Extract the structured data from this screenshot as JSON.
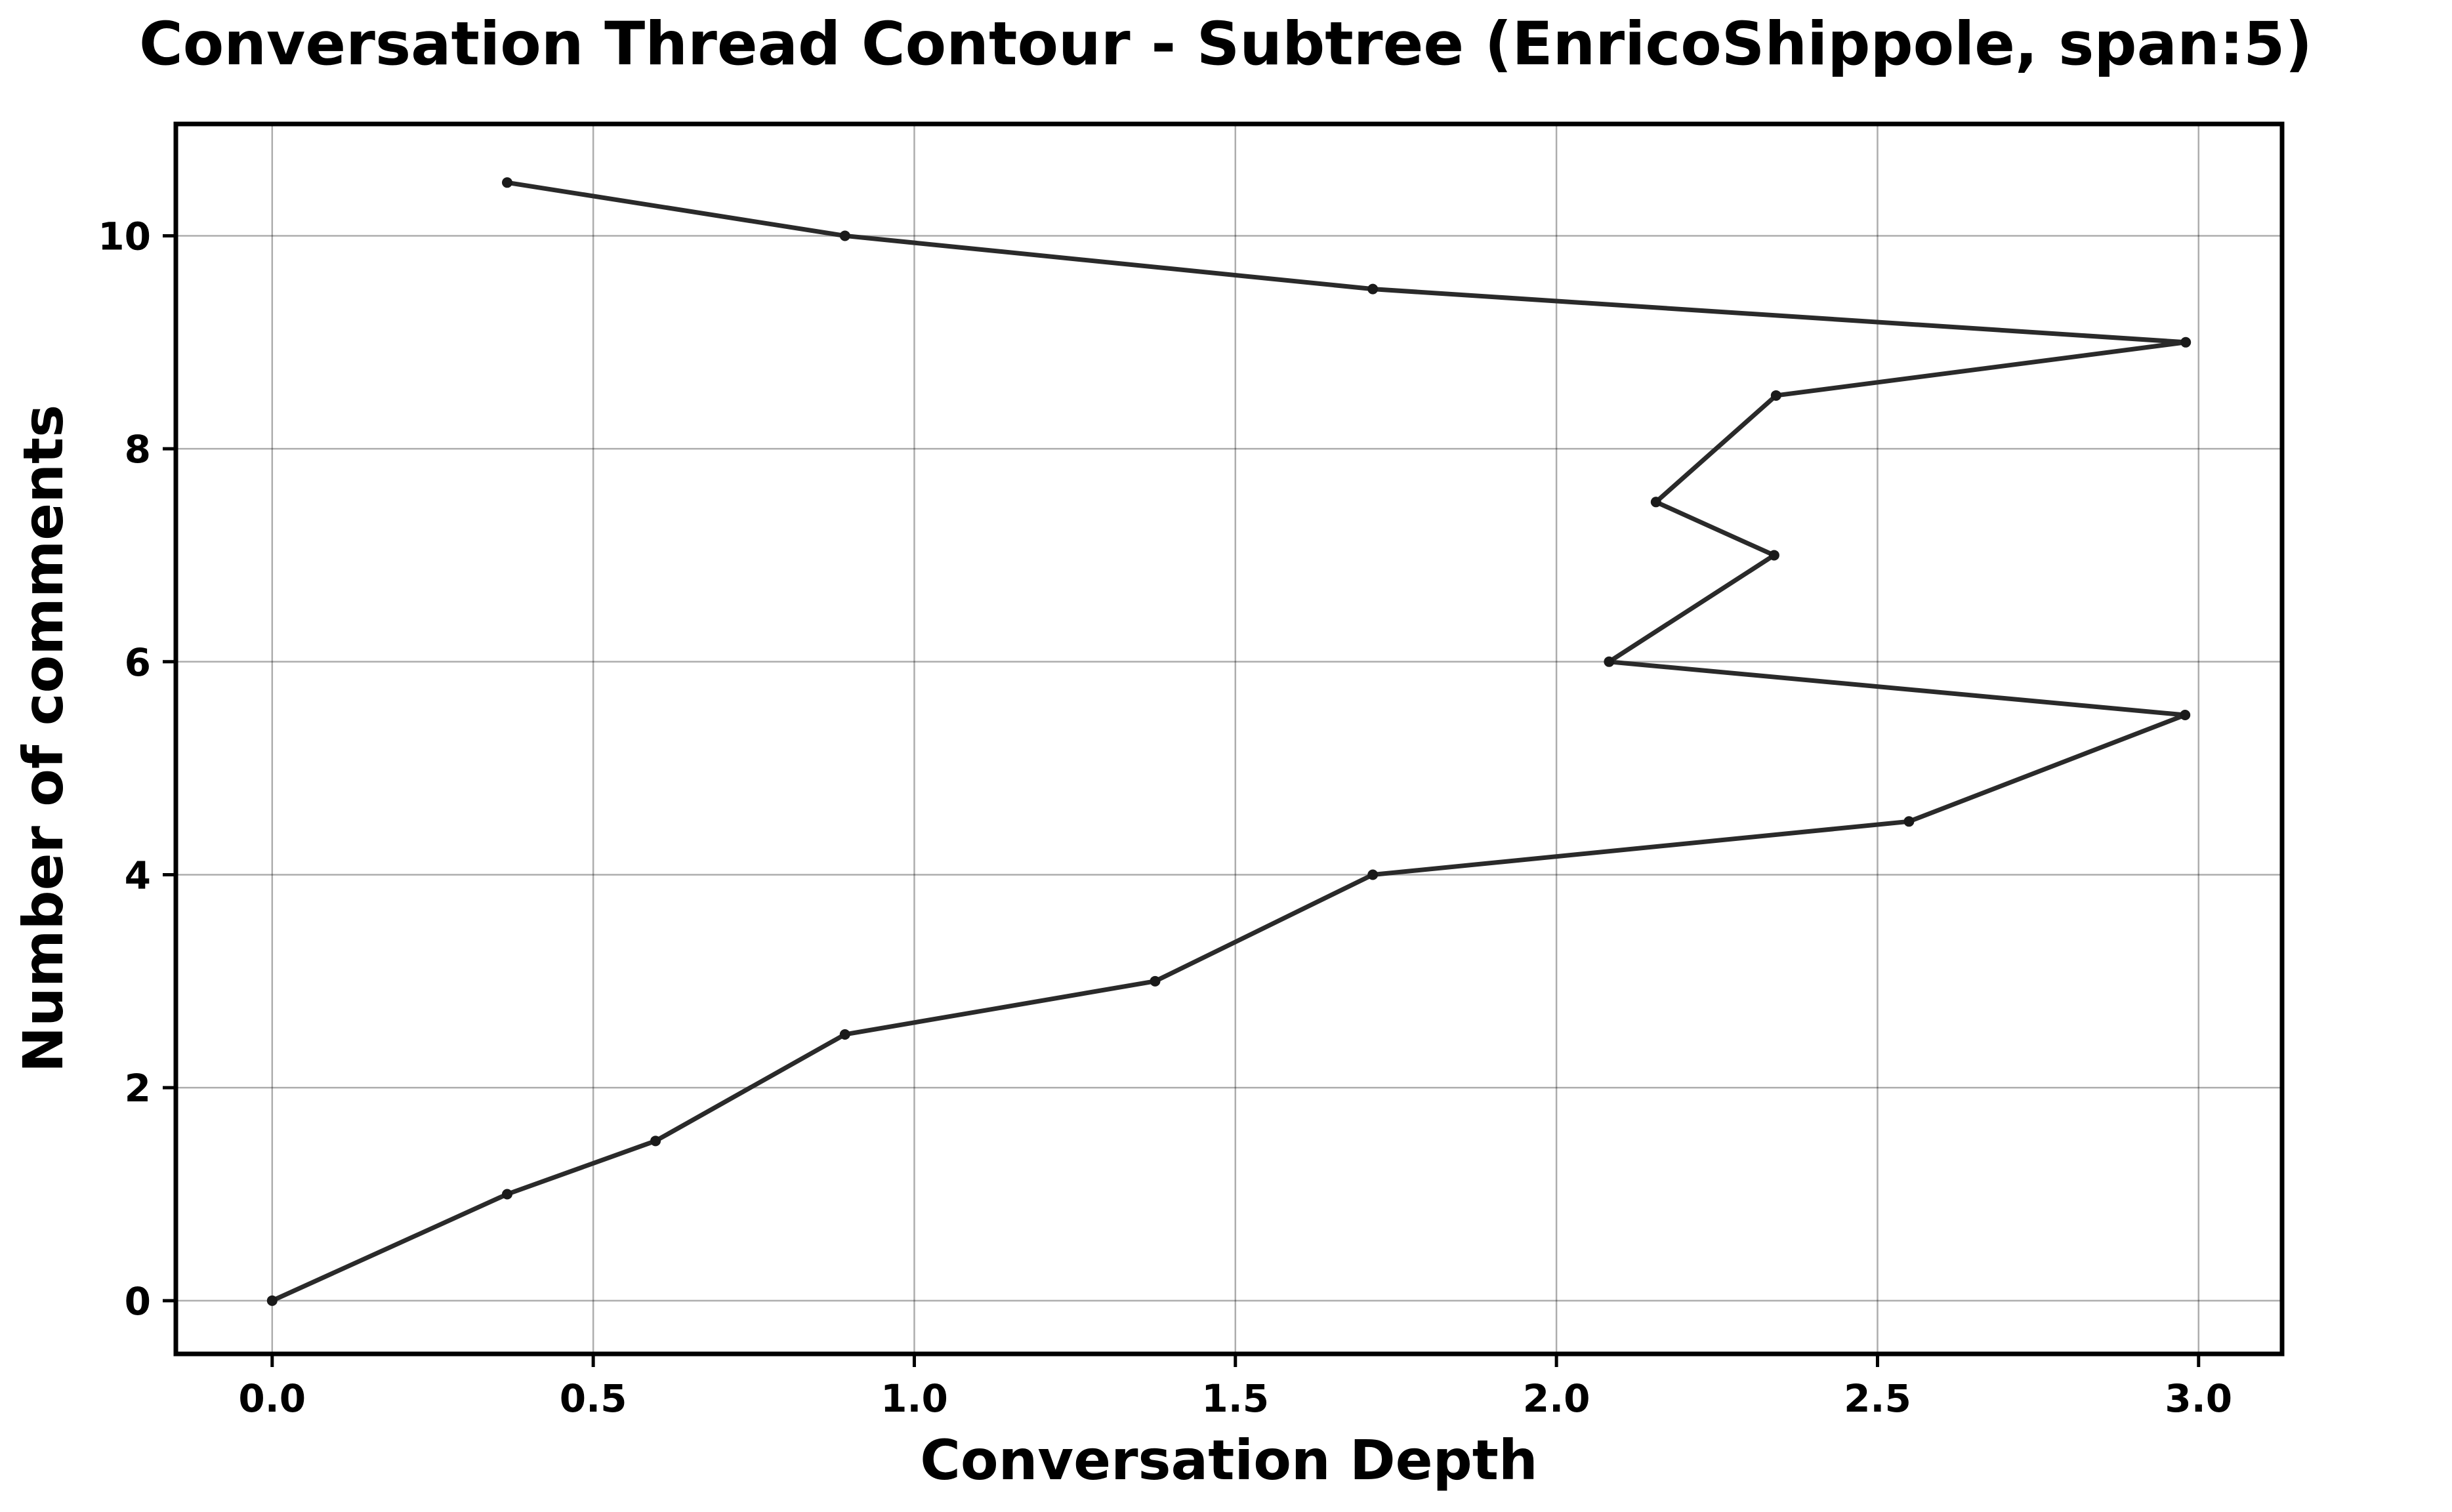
{
  "chart_data": {
    "type": "line",
    "title": "Conversation Thread Contour  - Subtree (EnricoShippole, span:5)",
    "xlabel": "Conversation Depth",
    "ylabel": "Number of comments",
    "xlim": [
      -0.15,
      3.13
    ],
    "ylim": [
      -0.5,
      11.05
    ],
    "grid": true,
    "x_ticks": [
      "0.0",
      "0.5",
      "1.0",
      "1.5",
      "2.0",
      "2.5",
      "3.0"
    ],
    "y_ticks": [
      "0",
      "2",
      "4",
      "6",
      "8",
      "10"
    ],
    "series": [
      {
        "color": "#2a2a2a",
        "points": [
          {
            "x": 0.0,
            "y": 0.0
          },
          {
            "x": 0.366,
            "y": 1.0
          },
          {
            "x": 0.597,
            "y": 1.5
          },
          {
            "x": 0.892,
            "y": 2.5
          },
          {
            "x": 1.375,
            "y": 3.0
          },
          {
            "x": 1.714,
            "y": 4.0
          },
          {
            "x": 2.549,
            "y": 4.5
          },
          {
            "x": 2.979,
            "y": 5.5
          },
          {
            "x": 2.082,
            "y": 6.0
          },
          {
            "x": 2.339,
            "y": 7.0
          },
          {
            "x": 2.155,
            "y": 7.5
          },
          {
            "x": 2.342,
            "y": 8.5
          },
          {
            "x": 2.98,
            "y": 9.0
          },
          {
            "x": 1.714,
            "y": 9.5
          },
          {
            "x": 0.892,
            "y": 10.0
          },
          {
            "x": 0.366,
            "y": 10.5
          }
        ]
      }
    ]
  }
}
